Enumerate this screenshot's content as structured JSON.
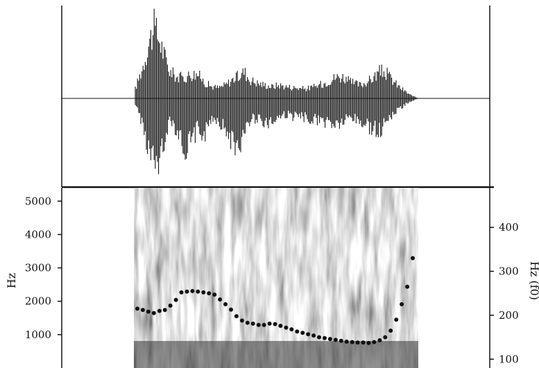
{
  "chart_data": [
    {
      "type": "line",
      "panel": "waveform",
      "title": "",
      "xlabel": "",
      "ylabel": "",
      "note": "speech waveform; no axis labels shown"
    },
    {
      "type": "scatter",
      "panel": "spectrogram-with-f0",
      "title": "",
      "xlabel": "",
      "ylabel": "Hz",
      "ylabel_right": "Hz (f0)",
      "y_ticks_left": [
        "1000",
        "2000",
        "3000",
        "4000",
        "5000"
      ],
      "y_ticks_right": [
        "100",
        "200",
        "300",
        "400"
      ],
      "ylim_left": [
        0,
        5400
      ],
      "ylim_right": [
        80,
        490
      ],
      "series": [
        {
          "color": "#111111",
          "x": [
            0.0,
            0.02,
            0.04,
            0.06,
            0.08,
            0.1,
            0.12,
            0.14,
            0.16,
            0.18,
            0.2,
            0.22,
            0.24,
            0.26,
            0.28,
            0.3,
            0.32,
            0.34,
            0.36,
            0.38,
            0.4,
            0.42,
            0.44,
            0.46,
            0.48,
            0.5,
            0.52,
            0.54,
            0.56,
            0.58,
            0.6,
            0.62,
            0.64,
            0.66,
            0.68,
            0.7,
            0.72,
            0.74,
            0.76,
            0.78,
            0.8,
            0.82,
            0.84,
            0.86,
            0.88,
            0.9,
            0.92,
            0.94,
            0.96,
            0.98,
            1.0
          ],
          "y": [
            215,
            212,
            208,
            205,
            210,
            212,
            222,
            235,
            252,
            254,
            255,
            254,
            252,
            250,
            247,
            236,
            225,
            213,
            198,
            188,
            183,
            181,
            178,
            178,
            181,
            180,
            176,
            172,
            168,
            163,
            160,
            157,
            154,
            150,
            148,
            146,
            144,
            142,
            140,
            139,
            138,
            138,
            137,
            139,
            143,
            150,
            165,
            190,
            225,
            265,
            330
          ]
        }
      ]
    }
  ]
}
